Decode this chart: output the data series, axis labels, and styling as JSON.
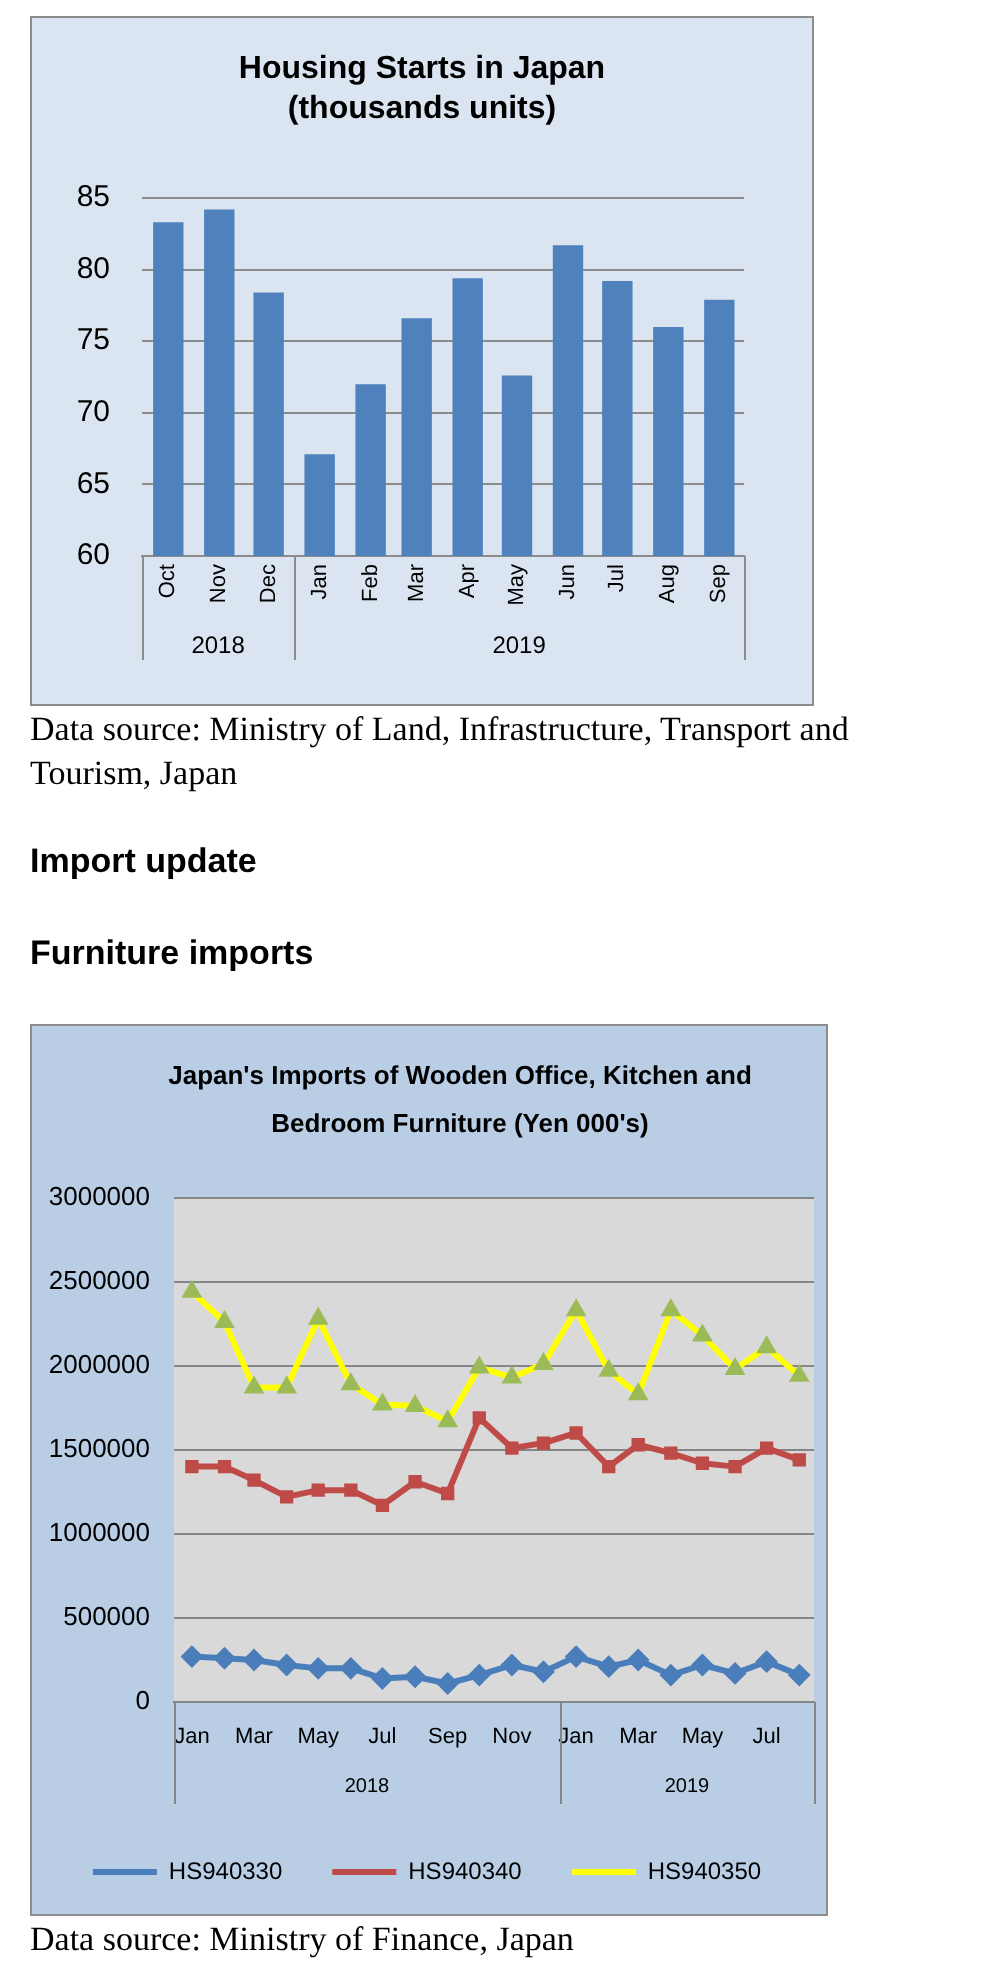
{
  "chart_data": [
    {
      "type": "bar",
      "title": "Housing Starts in Japan (thousands units)",
      "x": [
        "2018-10",
        "2018-11",
        "2018-12",
        "2019-01",
        "2019-02",
        "2019-03",
        "2019-04",
        "2019-05",
        "2019-06",
        "2019-07",
        "2019-08",
        "2019-09"
      ],
      "xlim": [
        "2018-09-15",
        "2019-09-16"
      ],
      "xticks": [
        {
          "value": "2018-10",
          "label": "Oct"
        },
        {
          "value": "2018-11",
          "label": "Nov"
        },
        {
          "value": "2018-12",
          "label": "Dec"
        },
        {
          "value": "2019-01",
          "label": "Jan"
        },
        {
          "value": "2019-02",
          "label": "Feb"
        },
        {
          "value": "2019-03",
          "label": "Mar"
        },
        {
          "value": "2019-04",
          "label": "Apr"
        },
        {
          "value": "2019-05",
          "label": "May"
        },
        {
          "value": "2019-06",
          "label": "Jun"
        },
        {
          "value": "2019-07",
          "label": "Jul"
        },
        {
          "value": "2019-08",
          "label": "Aug"
        },
        {
          "value": "2019-09",
          "label": "Sep"
        }
      ],
      "values": [
        83.3,
        84.2,
        78.4,
        67.1,
        72.0,
        76.6,
        79.4,
        72.6,
        81.7,
        79.2,
        76.0,
        77.9
      ],
      "color": "#4f81bd",
      "ylim": [
        60,
        85
      ],
      "yticks": [
        60,
        65,
        70,
        75,
        80,
        85
      ],
      "grid": "y",
      "annotations": [
        "2018",
        "2019",
        "Data source: Ministry of Land, Infrastructure, Transport and Tourism, Japan"
      ]
    },
    {
      "type": "line",
      "title": "Japan's Imports of Wooden Office, Kitchen and Bedroom Furniture (Yen 000's)",
      "x": [
        "2018-01",
        "2018-02",
        "2018-03",
        "2018-04",
        "2018-05",
        "2018-06",
        "2018-07",
        "2018-08",
        "2018-09",
        "2018-10",
        "2018-11",
        "2018-12",
        "2019-01",
        "2019-02",
        "2019-03",
        "2019-04",
        "2019-05",
        "2019-06",
        "2019-07",
        "2019-08"
      ],
      "xlim": [
        "2017-12-15",
        "2019-08-15"
      ],
      "xticks": [
        {
          "value": "2018-01",
          "label": "Jan"
        },
        {
          "value": "2018-03",
          "label": "Mar"
        },
        {
          "value": "2018-05",
          "label": "May"
        },
        {
          "value": "2018-07",
          "label": "Jul"
        },
        {
          "value": "2018-09",
          "label": "Sep"
        },
        {
          "value": "2018-11",
          "label": "Nov"
        },
        {
          "value": "2019-01",
          "label": "Jan"
        },
        {
          "value": "2019-03",
          "label": "Mar"
        },
        {
          "value": "2019-05",
          "label": "May"
        },
        {
          "value": "2019-07",
          "label": "Jul"
        }
      ],
      "series": [
        {
          "name": "HS940330",
          "color": "#4a7ebb",
          "marker": "diamond",
          "values": [
            270000,
            260000,
            250000,
            220000,
            200000,
            200000,
            140000,
            150000,
            110000,
            160000,
            220000,
            180000,
            270000,
            210000,
            250000,
            160000,
            220000,
            170000,
            240000,
            160000
          ]
        },
        {
          "name": "HS940340",
          "color": "#be4b48",
          "marker": "square",
          "values": [
            1400000,
            1400000,
            1320000,
            1220000,
            1260000,
            1260000,
            1170000,
            1310000,
            1240000,
            1690000,
            1510000,
            1540000,
            1600000,
            1400000,
            1530000,
            1480000,
            1420000,
            1400000,
            1510000,
            1440000
          ]
        },
        {
          "name": "HS940350",
          "color": "#ffff00",
          "marker": "triangle",
          "colors": [
            "#9bbb59",
            "#9bbb59",
            "#9bbb59",
            "#9bbb59",
            "#9bbb59",
            "#9bbb59",
            "#9bbb59",
            "#9bbb59",
            "#9bbb59",
            "#9bbb59",
            "#9bbb59",
            "#9bbb59",
            "#9bbb59",
            "#9bbb59",
            "#9bbb59",
            "#9bbb59",
            "#9bbb59",
            "#9bbb59",
            "#9bbb59",
            "#9bbb59"
          ],
          "values": [
            2440000,
            2260000,
            1870000,
            1870000,
            2280000,
            1890000,
            1770000,
            1760000,
            1670000,
            1990000,
            1930000,
            2010000,
            2330000,
            1970000,
            1830000,
            2330000,
            2180000,
            1980000,
            2110000,
            1940000
          ]
        }
      ],
      "ylim": [
        0,
        3000000
      ],
      "yticks": [
        0,
        500000,
        1000000,
        1500000,
        2000000,
        2500000,
        3000000
      ],
      "grid": "y",
      "legend": "bottom",
      "annotations": [
        "2018",
        "2019",
        "Import update",
        "Furniture imports",
        "Data source: Ministry of Finance, Japan"
      ]
    }
  ]
}
